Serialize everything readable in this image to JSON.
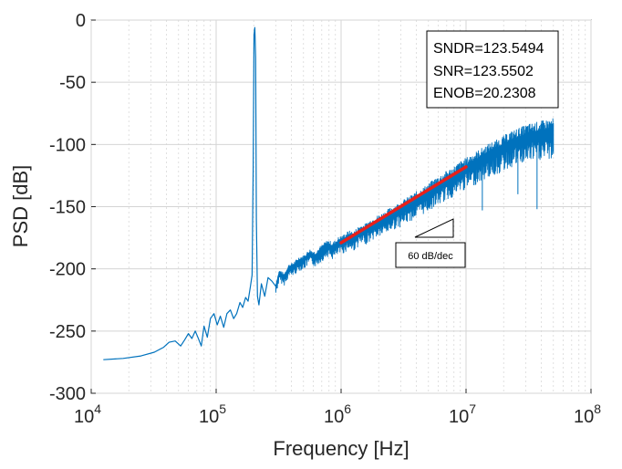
{
  "chart_data": {
    "type": "line",
    "title": "",
    "xlabel": "Frequency [Hz]",
    "ylabel": "PSD [dB]",
    "xscale": "log",
    "xlim": [
      10000,
      100000000
    ],
    "ylim": [
      -300,
      0
    ],
    "grid": true,
    "x_ticks": [
      {
        "value": 10000,
        "base": "10",
        "exp": "4"
      },
      {
        "value": 100000,
        "base": "10",
        "exp": "5"
      },
      {
        "value": 1000000,
        "base": "10",
        "exp": "6"
      },
      {
        "value": 10000000,
        "base": "10",
        "exp": "7"
      },
      {
        "value": 100000000,
        "base": "10",
        "exp": "8"
      }
    ],
    "y_ticks": [
      {
        "value": 0,
        "label": "0"
      },
      {
        "value": -50,
        "label": "-50"
      },
      {
        "value": -100,
        "label": "-100"
      },
      {
        "value": -150,
        "label": "-150"
      },
      {
        "value": -200,
        "label": "-200"
      },
      {
        "value": -250,
        "label": "-250"
      },
      {
        "value": -300,
        "label": "-300"
      }
    ],
    "series": [
      {
        "name": "PSD",
        "color": "#0072BD",
        "points": [
          [
            12500,
            -273
          ],
          [
            18000,
            -272
          ],
          [
            25000,
            -270
          ],
          [
            32000,
            -267
          ],
          [
            38000,
            -263
          ],
          [
            42000,
            -259
          ],
          [
            47000,
            -258
          ],
          [
            52000,
            -262
          ],
          [
            56000,
            -257
          ],
          [
            60000,
            -252
          ],
          [
            64000,
            -256
          ],
          [
            68000,
            -250
          ],
          [
            72000,
            -256
          ],
          [
            76000,
            -262
          ],
          [
            80000,
            -246
          ],
          [
            85000,
            -255
          ],
          [
            90000,
            -240
          ],
          [
            96000,
            -236
          ],
          [
            102000,
            -245
          ],
          [
            108000,
            -238
          ],
          [
            115000,
            -247
          ],
          [
            122000,
            -236
          ],
          [
            130000,
            -233
          ],
          [
            138000,
            -240
          ],
          [
            146000,
            -236
          ],
          [
            155000,
            -227
          ],
          [
            163000,
            -231
          ],
          [
            172000,
            -223
          ],
          [
            180000,
            -226
          ],
          [
            188000,
            -214
          ],
          [
            194000,
            -205
          ],
          [
            198000,
            -120
          ],
          [
            201000,
            -12
          ],
          [
            204000,
            -6
          ],
          [
            207000,
            -30
          ],
          [
            210000,
            -160
          ],
          [
            214000,
            -222
          ],
          [
            220000,
            -229
          ],
          [
            230000,
            -212
          ],
          [
            245000,
            -222
          ],
          [
            260000,
            -207
          ],
          [
            280000,
            -210
          ],
          [
            300000,
            -214
          ],
          [
            320000,
            -203
          ],
          [
            350000,
            -206
          ],
          [
            380000,
            -199
          ],
          [
            420000,
            -197
          ],
          [
            460000,
            -193
          ],
          [
            500000,
            -192
          ],
          [
            560000,
            -187
          ],
          [
            620000,
            -189
          ],
          [
            700000,
            -184
          ],
          [
            780000,
            -180
          ],
          [
            860000,
            -182
          ],
          [
            950000,
            -178
          ],
          [
            1050000,
            -176
          ],
          [
            1150000,
            -173
          ],
          [
            1250000,
            -174
          ],
          [
            1400000,
            -169
          ],
          [
            1550000,
            -168
          ],
          [
            1700000,
            -165
          ],
          [
            1900000,
            -162
          ],
          [
            2100000,
            -160
          ],
          [
            2350000,
            -157
          ],
          [
            2600000,
            -154
          ],
          [
            2900000,
            -152
          ],
          [
            3200000,
            -149
          ],
          [
            3600000,
            -146
          ],
          [
            4000000,
            -143
          ],
          [
            4500000,
            -140
          ],
          [
            5000000,
            -137
          ],
          [
            5600000,
            -133
          ],
          [
            6300000,
            -130
          ],
          [
            7000000,
            -127
          ],
          [
            7900000,
            -124
          ],
          [
            8900000,
            -120
          ],
          [
            10000000,
            -117
          ],
          [
            11200000,
            -114
          ],
          [
            12600000,
            -111
          ],
          [
            14100000,
            -108
          ],
          [
            15800000,
            -105
          ],
          [
            17800000,
            -103
          ],
          [
            20000000,
            -100
          ],
          [
            22400000,
            -97
          ],
          [
            25100000,
            -95
          ],
          [
            28200000,
            -93
          ],
          [
            31600000,
            -91
          ],
          [
            35500000,
            -90
          ],
          [
            39800000,
            -89
          ],
          [
            44700000,
            -88
          ],
          [
            50000000,
            -87
          ]
        ]
      }
    ],
    "fit_line": {
      "name": "60 dB/dec slope",
      "color": "#E8201A",
      "x": [
        1000000,
        10000000
      ],
      "y": [
        -179,
        -118
      ]
    },
    "annotations": {
      "metrics": [
        "SNDR=123.5494",
        "SNR=123.5502",
        "ENOB=20.2308"
      ],
      "slope_label": "60 dB/dec"
    }
  }
}
